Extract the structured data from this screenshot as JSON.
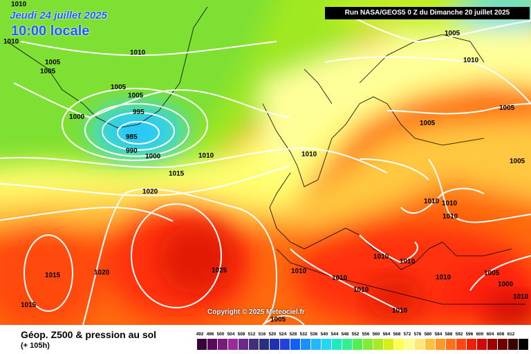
{
  "header": {
    "date": "Jeudi 24 juillet 2025",
    "time": "10:00 locale",
    "run": "Run NASA/GEOS5 0 Z du Dimanche 20 juillet 2025"
  },
  "map": {
    "copyright": "Copyright © 2025 Meteociel.fr",
    "pressure_labels": [
      "1010",
      "1005",
      "1005",
      "1010",
      "1005",
      "1005",
      "1000",
      "995",
      "985",
      "990",
      "1000",
      "1010",
      "1015",
      "1020",
      "1010",
      "1005",
      "1005",
      "1005",
      "1010",
      "1010",
      "1010",
      "1015",
      "1020",
      "1015",
      "1025",
      "1010",
      "1010",
      "1010",
      "1010",
      "1010",
      "1005",
      "1000",
      "1010",
      "1005",
      "1005",
      "1000",
      "1005",
      "1005",
      "1010",
      "1010",
      "1010",
      "1005"
    ],
    "colors": {
      "low_cyan": "#30d8f0",
      "green": "#9be81e",
      "yellow": "#ffff80",
      "orange": "#ff9900",
      "red": "#ff2a10",
      "dark_red": "#c00000"
    }
  },
  "footer": {
    "title": "Géop. Z500 & pression au sol",
    "subtitle": "(+ 105h)"
  },
  "legend": {
    "labels": [
      "492",
      "496",
      "500",
      "504",
      "508",
      "512",
      "516",
      "520",
      "524",
      "528",
      "532",
      "536",
      "540",
      "544",
      "548",
      "552",
      "556",
      "560",
      "564",
      "568",
      "572",
      "576",
      "580",
      "584",
      "588",
      "592",
      "596",
      "600",
      "604",
      "608",
      "612"
    ],
    "colors": [
      "#3a003a",
      "#5a0a5a",
      "#7a1a7a",
      "#9a2a9a",
      "#6a2a8a",
      "#40307a",
      "#28307e",
      "#2030b0",
      "#2040e0",
      "#1060f8",
      "#1890ff",
      "#20b8ff",
      "#20d8f0",
      "#20e8c0",
      "#30f090",
      "#50f050",
      "#80ee30",
      "#a8ec20",
      "#d8f010",
      "#ffff50",
      "#ffff90",
      "#ffe878",
      "#ffc040",
      "#ff9828",
      "#ff7018",
      "#ff4810",
      "#f02008",
      "#d00808",
      "#a00000",
      "#700000",
      "#400000",
      "#000000"
    ]
  }
}
